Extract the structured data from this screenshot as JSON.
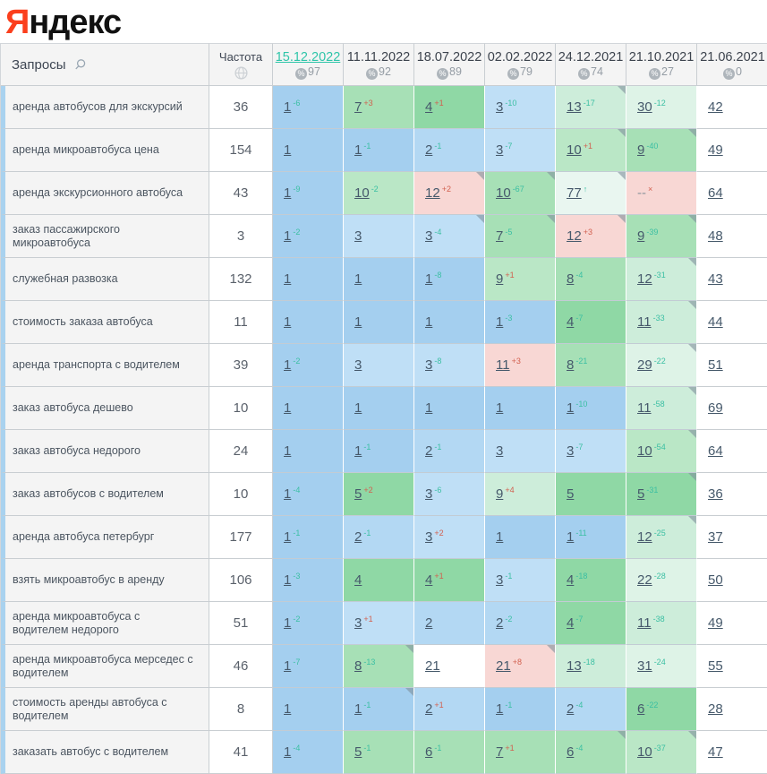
{
  "logo": {
    "first_letter": "Я",
    "rest": "ндекс"
  },
  "colors": {
    "b1": "#a4cfef",
    "b2": "#b3d8f3",
    "b3": "#bfdff6",
    "g1": "#8fd8a5",
    "g2": "#a7e0b6",
    "g3": "#bae7c6",
    "p1": "#cdedda",
    "p2": "#def3e7",
    "p3": "#e9f6f0",
    "w": "#ffffff",
    "pink": "#f8d7d4",
    "accent_teal": "#2ec5a9",
    "delta_up": "#3bbfa3",
    "delta_down": "#d2604f",
    "left_strip": "#a9d2ef",
    "logo_red": "#fb3f1d"
  },
  "icons": {
    "search": "search-icon",
    "globe": "globe-icon",
    "percent": "percent-badge-icon",
    "corner": "corner-marker"
  },
  "table": {
    "queries_header": "Запросы",
    "frequency_header": "Частота",
    "dates": [
      {
        "label": "15.12.2022",
        "coverage": "97",
        "active": true
      },
      {
        "label": "11.11.2022",
        "coverage": "92",
        "active": false
      },
      {
        "label": "18.07.2022",
        "coverage": "89",
        "active": false
      },
      {
        "label": "02.02.2022",
        "coverage": "79",
        "active": false
      },
      {
        "label": "24.12.2021",
        "coverage": "74",
        "active": false
      },
      {
        "label": "21.10.2021",
        "coverage": "27",
        "active": false
      },
      {
        "label": "21.06.2021",
        "coverage": "0",
        "active": false
      }
    ],
    "rows": [
      {
        "keyword": "аренда автобусов для экскурсий",
        "frequency": "36",
        "cells": [
          {
            "p": "1",
            "d": "-6",
            "bg": "b1"
          },
          {
            "p": "7",
            "d": "+3",
            "bg": "g2"
          },
          {
            "p": "4",
            "d": "+1",
            "bg": "g1"
          },
          {
            "p": "3",
            "d": "-10",
            "bg": "b3"
          },
          {
            "p": "13",
            "d": "-17",
            "bg": "p1",
            "m": 1
          },
          {
            "p": "30",
            "d": "-12",
            "bg": "p2"
          },
          {
            "p": "42",
            "bg": "w"
          }
        ]
      },
      {
        "keyword": "аренда микроавтобуса цена",
        "frequency": "154",
        "cells": [
          {
            "p": "1",
            "bg": "b1"
          },
          {
            "p": "1",
            "d": "-1",
            "bg": "b1"
          },
          {
            "p": "2",
            "d": "-1",
            "bg": "b2"
          },
          {
            "p": "3",
            "d": "-7",
            "bg": "b3"
          },
          {
            "p": "10",
            "d": "+1",
            "bg": "g3",
            "m": 1
          },
          {
            "p": "9",
            "d": "-40",
            "bg": "g2",
            "m": 1
          },
          {
            "p": "49",
            "bg": "w"
          }
        ]
      },
      {
        "keyword": "аренда экскурсионного автобуса",
        "frequency": "43",
        "cells": [
          {
            "p": "1",
            "d": "-9",
            "bg": "b1"
          },
          {
            "p": "10",
            "d": "-2",
            "bg": "g3"
          },
          {
            "p": "12",
            "d": "+2",
            "bg": "pink",
            "m": 1
          },
          {
            "p": "10",
            "d": "-67",
            "bg": "g2",
            "m": 1
          },
          {
            "p": "77",
            "d": "↑",
            "bg": "p3",
            "m": 1
          },
          {
            "p": "--",
            "d": "×",
            "bg": "pink"
          },
          {
            "p": "64",
            "bg": "w"
          }
        ]
      },
      {
        "keyword": "заказ пассажирского микроавтобуса",
        "frequency": "3",
        "cells": [
          {
            "p": "1",
            "d": "-2",
            "bg": "b1"
          },
          {
            "p": "3",
            "bg": "b3"
          },
          {
            "p": "3",
            "d": "-4",
            "bg": "b3",
            "m": 1
          },
          {
            "p": "7",
            "d": "-5",
            "bg": "g2",
            "m": 1
          },
          {
            "p": "12",
            "d": "+3",
            "bg": "pink",
            "m": 1
          },
          {
            "p": "9",
            "d": "-39",
            "bg": "g2",
            "m": 1
          },
          {
            "p": "48",
            "bg": "w"
          }
        ]
      },
      {
        "keyword": "служебная развозка",
        "frequency": "132",
        "cells": [
          {
            "p": "1",
            "bg": "b1"
          },
          {
            "p": "1",
            "bg": "b1"
          },
          {
            "p": "1",
            "d": "-8",
            "bg": "b1"
          },
          {
            "p": "9",
            "d": "+1",
            "bg": "g3"
          },
          {
            "p": "8",
            "d": "-4",
            "bg": "g2"
          },
          {
            "p": "12",
            "d": "-31",
            "bg": "p1",
            "m": 1
          },
          {
            "p": "43",
            "bg": "w"
          }
        ]
      },
      {
        "keyword": "стоимость заказа автобуса",
        "frequency": "11",
        "cells": [
          {
            "p": "1",
            "bg": "b1"
          },
          {
            "p": "1",
            "bg": "b1"
          },
          {
            "p": "1",
            "bg": "b1"
          },
          {
            "p": "1",
            "d": "-3",
            "bg": "b1"
          },
          {
            "p": "4",
            "d": "-7",
            "bg": "g1"
          },
          {
            "p": "11",
            "d": "-33",
            "bg": "p1",
            "m": 1
          },
          {
            "p": "44",
            "bg": "w"
          }
        ]
      },
      {
        "keyword": "аренда транспорта с водителем",
        "frequency": "39",
        "cells": [
          {
            "p": "1",
            "d": "-2",
            "bg": "b1"
          },
          {
            "p": "3",
            "bg": "b3"
          },
          {
            "p": "3",
            "d": "-8",
            "bg": "b3"
          },
          {
            "p": "11",
            "d": "+3",
            "bg": "pink"
          },
          {
            "p": "8",
            "d": "-21",
            "bg": "g2"
          },
          {
            "p": "29",
            "d": "-22",
            "bg": "p2",
            "m": 1
          },
          {
            "p": "51",
            "bg": "w"
          }
        ]
      },
      {
        "keyword": "заказ автобуса дешево",
        "frequency": "10",
        "cells": [
          {
            "p": "1",
            "bg": "b1"
          },
          {
            "p": "1",
            "bg": "b1"
          },
          {
            "p": "1",
            "bg": "b1"
          },
          {
            "p": "1",
            "bg": "b1"
          },
          {
            "p": "1",
            "d": "-10",
            "bg": "b1"
          },
          {
            "p": "11",
            "d": "-58",
            "bg": "p1",
            "m": 1
          },
          {
            "p": "69",
            "bg": "w"
          }
        ]
      },
      {
        "keyword": "заказ автобуса недорого",
        "frequency": "24",
        "cells": [
          {
            "p": "1",
            "bg": "b1"
          },
          {
            "p": "1",
            "d": "-1",
            "bg": "b1"
          },
          {
            "p": "2",
            "d": "-1",
            "bg": "b2"
          },
          {
            "p": "3",
            "bg": "b3"
          },
          {
            "p": "3",
            "d": "-7",
            "bg": "b3"
          },
          {
            "p": "10",
            "d": "-54",
            "bg": "g3",
            "m": 1
          },
          {
            "p": "64",
            "bg": "w"
          }
        ]
      },
      {
        "keyword": "заказ автобусов с водителем",
        "frequency": "10",
        "cells": [
          {
            "p": "1",
            "d": "-4",
            "bg": "b1"
          },
          {
            "p": "5",
            "d": "+2",
            "bg": "g1"
          },
          {
            "p": "3",
            "d": "-6",
            "bg": "b3"
          },
          {
            "p": "9",
            "d": "+4",
            "bg": "p1"
          },
          {
            "p": "5",
            "bg": "g1"
          },
          {
            "p": "5",
            "d": "-31",
            "bg": "g1",
            "m": 1
          },
          {
            "p": "36",
            "bg": "w"
          }
        ]
      },
      {
        "keyword": "аренда автобуса петербург",
        "frequency": "177",
        "cells": [
          {
            "p": "1",
            "d": "-1",
            "bg": "b1"
          },
          {
            "p": "2",
            "d": "-1",
            "bg": "b2"
          },
          {
            "p": "3",
            "d": "+2",
            "bg": "b3"
          },
          {
            "p": "1",
            "bg": "b1"
          },
          {
            "p": "1",
            "d": "-11",
            "bg": "b1"
          },
          {
            "p": "12",
            "d": "-25",
            "bg": "p1",
            "m": 1
          },
          {
            "p": "37",
            "bg": "w"
          }
        ]
      },
      {
        "keyword": "взять микроавтобус в аренду",
        "frequency": "106",
        "cells": [
          {
            "p": "1",
            "d": "-3",
            "bg": "b1"
          },
          {
            "p": "4",
            "bg": "g1"
          },
          {
            "p": "4",
            "d": "+1",
            "bg": "g1"
          },
          {
            "p": "3",
            "d": "-1",
            "bg": "b3"
          },
          {
            "p": "4",
            "d": "-18",
            "bg": "g1"
          },
          {
            "p": "22",
            "d": "-28",
            "bg": "p2"
          },
          {
            "p": "50",
            "bg": "w"
          }
        ]
      },
      {
        "keyword": "аренда микроавтобуса с водителем недорого",
        "frequency": "51",
        "cells": [
          {
            "p": "1",
            "d": "-2",
            "bg": "b1"
          },
          {
            "p": "3",
            "d": "+1",
            "bg": "b3"
          },
          {
            "p": "2",
            "bg": "b2"
          },
          {
            "p": "2",
            "d": "-2",
            "bg": "b2"
          },
          {
            "p": "4",
            "d": "-7",
            "bg": "g1"
          },
          {
            "p": "11",
            "d": "-38",
            "bg": "p1"
          },
          {
            "p": "49",
            "bg": "w"
          }
        ]
      },
      {
        "keyword": "аренда микроавтобуса мерседес с водителем",
        "frequency": "46",
        "cells": [
          {
            "p": "1",
            "d": "-7",
            "bg": "b1"
          },
          {
            "p": "8",
            "d": "-13",
            "bg": "g2",
            "m": 1
          },
          {
            "p": "21",
            "bg": "w"
          },
          {
            "p": "21",
            "d": "+8",
            "bg": "pink",
            "m": 1
          },
          {
            "p": "13",
            "d": "-18",
            "bg": "p1"
          },
          {
            "p": "31",
            "d": "-24",
            "bg": "p2"
          },
          {
            "p": "55",
            "bg": "w"
          }
        ]
      },
      {
        "keyword": "стоимость аренды автобуса с водителем",
        "frequency": "8",
        "cells": [
          {
            "p": "1",
            "bg": "b1"
          },
          {
            "p": "1",
            "d": "-1",
            "bg": "b1",
            "m": 1
          },
          {
            "p": "2",
            "d": "+1",
            "bg": "b2"
          },
          {
            "p": "1",
            "d": "-1",
            "bg": "b1"
          },
          {
            "p": "2",
            "d": "-4",
            "bg": "b2"
          },
          {
            "p": "6",
            "d": "-22",
            "bg": "g1"
          },
          {
            "p": "28",
            "bg": "w"
          }
        ]
      },
      {
        "keyword": "заказать автобус с водителем",
        "frequency": "41",
        "cells": [
          {
            "p": "1",
            "d": "-4",
            "bg": "b1"
          },
          {
            "p": "5",
            "d": "-1",
            "bg": "g2"
          },
          {
            "p": "6",
            "d": "-1",
            "bg": "g2"
          },
          {
            "p": "7",
            "d": "+1",
            "bg": "g2"
          },
          {
            "p": "6",
            "d": "-4",
            "bg": "g2",
            "m": 1
          },
          {
            "p": "10",
            "d": "-37",
            "bg": "g3",
            "m": 1
          },
          {
            "p": "47",
            "bg": "w"
          }
        ]
      }
    ]
  }
}
